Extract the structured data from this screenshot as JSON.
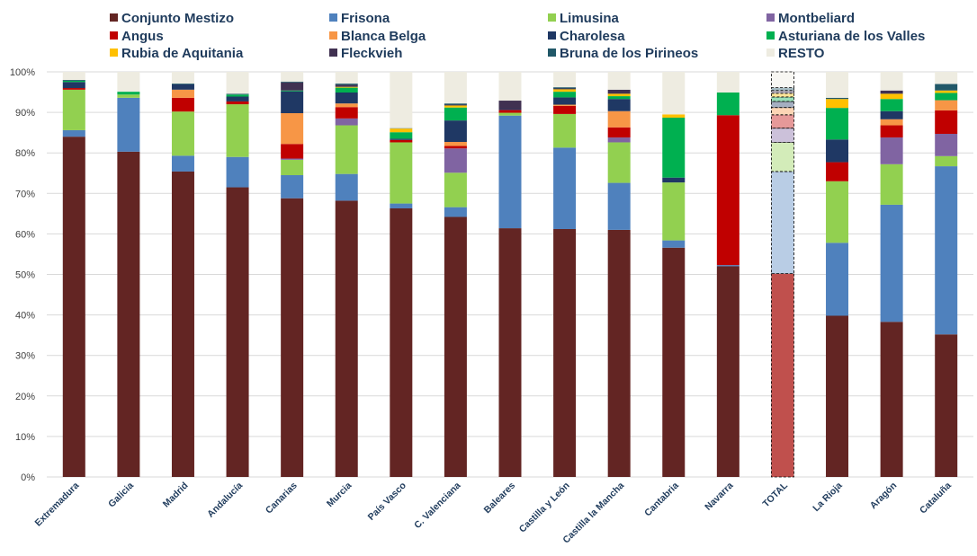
{
  "chart_data": {
    "type": "bar",
    "stacked": true,
    "percent": true,
    "title": "",
    "xlabel": "",
    "ylabel": "",
    "ylim": [
      0,
      100
    ],
    "yticks": [
      "0%",
      "10%",
      "20%",
      "30%",
      "40%",
      "50%",
      "60%",
      "70%",
      "80%",
      "90%",
      "100%"
    ],
    "grid": true,
    "legend_position": "top",
    "highlight_category": "TOTAL",
    "categories": [
      "Extremadura",
      "Galicia",
      "Madrid",
      "Andalucía",
      "Canarias",
      "Murcia",
      "País Vasco",
      "C. Valenciana",
      "Baleares",
      "Castilla y León",
      "Castilla la Mancha",
      "Cantabria",
      "Navarra",
      "TOTAL",
      "La Rioja",
      "Aragón",
      "Cataluña"
    ],
    "series": [
      {
        "name": "Conjunto Mestizo",
        "color": "#632523",
        "values": [
          84,
          80.3,
          75.4,
          71.5,
          68.8,
          68.2,
          66.3,
          64.2,
          61.4,
          61.2,
          61,
          56.6,
          52,
          50.2,
          39.8,
          38.3,
          35.2
        ]
      },
      {
        "name": "Frisona",
        "color": "#4f81bd",
        "values": [
          1.6,
          13.3,
          3.9,
          7.5,
          5.7,
          6.6,
          1.2,
          2.4,
          27.8,
          20.1,
          11.6,
          1.8,
          0.3,
          25.2,
          18,
          28.9,
          41.5
        ]
      },
      {
        "name": "Limusina",
        "color": "#92d050",
        "values": [
          10,
          0.8,
          10.9,
          13,
          3.8,
          12,
          15.1,
          8.5,
          0.7,
          8.3,
          10,
          14.3,
          0,
          7.2,
          15.2,
          10,
          2.5
        ]
      },
      {
        "name": "Montbeliard",
        "color": "#8064a2",
        "values": [
          0,
          0,
          0,
          0,
          0.3,
          1.7,
          0,
          6,
          0,
          0,
          1.2,
          0,
          0,
          3.5,
          0,
          6.6,
          5.5
        ]
      },
      {
        "name": "Angus",
        "color": "#c00000",
        "values": [
          0.4,
          0,
          3.4,
          0.7,
          3.6,
          2.8,
          0.6,
          0.6,
          0.7,
          2,
          2.5,
          0,
          37,
          3.3,
          4.7,
          3,
          5.8
        ]
      },
      {
        "name": "Blanca Belga",
        "color": "#f79646",
        "values": [
          0,
          0,
          2,
          0,
          7.6,
          0.9,
          0,
          1,
          0,
          0.3,
          4,
          0,
          0,
          1.8,
          0,
          1.5,
          2.5
        ]
      },
      {
        "name": "Charolesa",
        "color": "#1f3864",
        "values": [
          1.5,
          0,
          1.3,
          1.2,
          5.4,
          2.7,
          0.3,
          5.3,
          0.2,
          1.8,
          3,
          1.2,
          0,
          1.5,
          5.6,
          2,
          0
        ]
      },
      {
        "name": "Asturiana de los Valles",
        "color": "#00b050",
        "values": [
          0.3,
          0.7,
          0,
          0.5,
          0.2,
          1.2,
          1.6,
          3.2,
          0,
          1.4,
          0.7,
          14.8,
          5.6,
          1.1,
          7.8,
          3,
          1.8
        ]
      },
      {
        "name": "Rubia de Aquitania",
        "color": "#ffc000",
        "values": [
          0,
          0,
          0,
          0,
          0,
          0.2,
          0.9,
          0.5,
          0,
          0.6,
          0.6,
          0.8,
          0,
          0.9,
          2.2,
          1.3,
          0.6
        ]
      },
      {
        "name": "Fleckvieh",
        "color": "#403151",
        "values": [
          0,
          0,
          0,
          0,
          2,
          0.5,
          0,
          0.2,
          2.1,
          0.2,
          1,
          0,
          0,
          0.7,
          0,
          0.8,
          0
        ]
      },
      {
        "name": "Bruna de los Pirineos",
        "color": "#215868",
        "values": [
          0.2,
          0,
          0.2,
          0.2,
          0.2,
          0.3,
          0.1,
          0.3,
          0,
          0.3,
          0,
          0,
          0,
          0.7,
          0.3,
          0,
          1.6
        ]
      },
      {
        "name": "RESTO",
        "color": "#eeece1",
        "values": [
          2,
          4.9,
          2.9,
          5.4,
          2.4,
          2.9,
          13.9,
          7.8,
          7.1,
          3.8,
          4.4,
          10.5,
          5.1,
          3.9,
          6.4,
          4.6,
          3
        ]
      }
    ]
  }
}
